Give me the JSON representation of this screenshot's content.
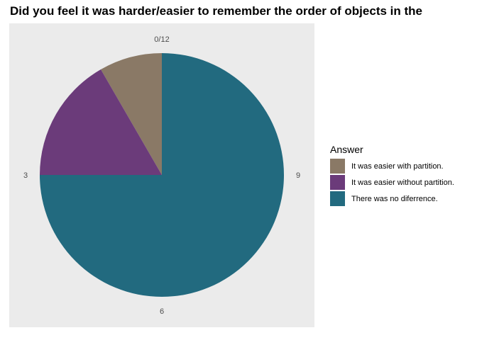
{
  "chart_data": {
    "type": "pie",
    "title": "Did you feel it was harder/easier to remember the order of objects in the",
    "categories": [
      "It was easier with partition.",
      "It was easier without partition.",
      "There was no diferrence."
    ],
    "values": [
      1,
      2,
      9
    ],
    "total": 12,
    "colors": [
      "#8a7966",
      "#6b3b7a",
      "#226a7f"
    ],
    "theta_axis": {
      "ticks": [
        0,
        3,
        6,
        9
      ],
      "tick_labels": [
        "0/12",
        "3",
        "6",
        "9"
      ]
    },
    "legend": {
      "title": "Answer",
      "position": "right"
    },
    "panel_background": "#ebebeb"
  }
}
